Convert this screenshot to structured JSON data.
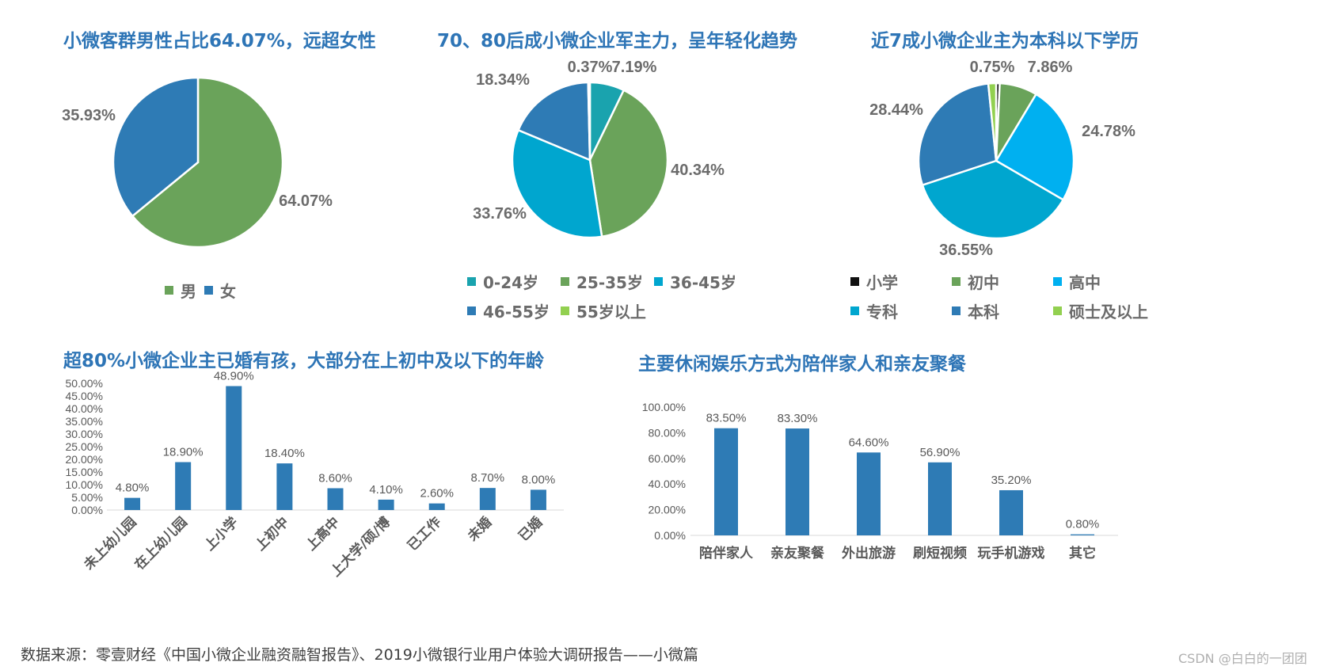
{
  "chart_data": [
    {
      "type": "pie",
      "title": "小微客群男性占比64.07%，远超女性",
      "labels": [
        "男",
        "女"
      ],
      "values": [
        64.07,
        35.93
      ],
      "data_labels": [
        "64.07%",
        "35.93%"
      ],
      "colors": [
        "#6aa35a",
        "#2e7bb5"
      ],
      "legend": "bottom"
    },
    {
      "type": "pie",
      "title": "70、80后成小微企业军主力，呈年轻化趋势",
      "labels": [
        "0-24岁",
        "25-35岁",
        "36-45岁",
        "46-55岁",
        "55岁以上"
      ],
      "values": [
        7.19,
        40.34,
        33.76,
        18.34,
        0.37
      ],
      "data_labels": [
        "7.19%",
        "40.34%",
        "33.76%",
        "18.34%",
        "0.37%"
      ],
      "colors": [
        "#1aa3ae",
        "#6aa35a",
        "#00a6cf",
        "#2e7bb5",
        "#92d050"
      ],
      "legend": "bottom"
    },
    {
      "type": "pie",
      "title": "近7成小微企业主为本科以下学历",
      "labels": [
        "小学",
        "初中",
        "高中",
        "专科",
        "本科",
        "硕士及以上"
      ],
      "values": [
        0.75,
        7.86,
        24.78,
        36.55,
        28.44,
        1.62
      ],
      "data_labels": [
        "0.75%",
        "7.86%",
        "24.78%",
        "36.55%",
        "28.44%",
        ""
      ],
      "colors": [
        "#111111",
        "#6aa35a",
        "#00b0f0",
        "#00a6cf",
        "#2e7bb5",
        "#92d050"
      ],
      "legend": "bottom"
    },
    {
      "type": "bar",
      "title": "超80%小微企业主已婚有孩，大部分在上初中及以下的年龄",
      "categories": [
        "未上幼儿园",
        "在上幼儿园",
        "上小学",
        "上初中",
        "上高中",
        "上大学/硕/博",
        "已工作",
        "未婚",
        "已婚"
      ],
      "values": [
        4.8,
        18.9,
        48.9,
        18.4,
        8.6,
        4.1,
        2.6,
        8.7,
        8.0
      ],
      "data_labels": [
        "4.80%",
        "18.90%",
        "48.90%",
        "18.40%",
        "8.60%",
        "4.10%",
        "2.60%",
        "8.70%",
        "8.00%"
      ],
      "yticks": [
        "0.00%",
        "5.00%",
        "10.00%",
        "15.00%",
        "20.00%",
        "25.00%",
        "30.00%",
        "35.00%",
        "40.00%",
        "45.00%",
        "50.00%"
      ],
      "ylim": [
        0,
        50
      ],
      "color": "#2e7bb5"
    },
    {
      "type": "bar",
      "title": "主要休闲娱乐方式为陪伴家人和亲友聚餐",
      "categories": [
        "陪伴家人",
        "亲友聚餐",
        "外出旅游",
        "刷短视频",
        "玩手机游戏",
        "其它"
      ],
      "values": [
        83.5,
        83.3,
        64.6,
        56.9,
        35.2,
        0.8
      ],
      "data_labels": [
        "83.50%",
        "83.30%",
        "64.60%",
        "56.90%",
        "35.20%",
        "0.80%"
      ],
      "yticks": [
        "0.00%",
        "20.00%",
        "40.00%",
        "60.00%",
        "80.00%",
        "100.00%"
      ],
      "ylim": [
        0,
        100
      ],
      "color": "#2e7bb5"
    }
  ],
  "footer": {
    "source": "数据来源：零壹财经《中国小微企业融资融智报告》、2019小微银行业用户体验大调研报告——小微篇",
    "watermark": "CSDN @白白的一团团"
  }
}
